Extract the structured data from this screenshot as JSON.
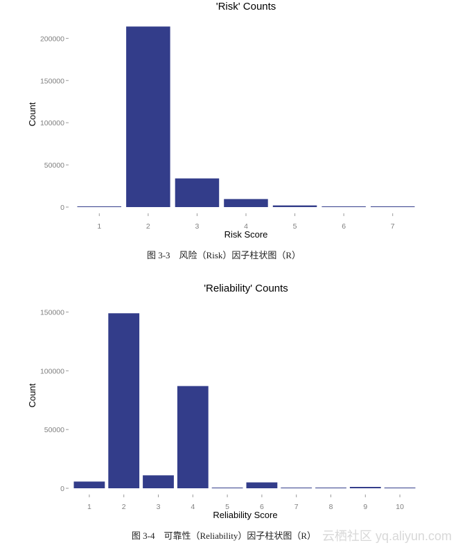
{
  "chart_data": [
    {
      "type": "bar",
      "title": "'Risk' Counts",
      "xlabel": "Risk Score",
      "ylabel": "Count",
      "categories": [
        "1",
        "2",
        "3",
        "4",
        "5",
        "6",
        "7"
      ],
      "values": [
        400,
        214000,
        34000,
        9500,
        2000,
        400,
        300
      ],
      "ylim": [
        0,
        220000
      ],
      "yticks": [
        "0",
        "50000",
        "100000",
        "150000",
        "200000"
      ],
      "ytick_values": [
        0,
        50000,
        100000,
        150000,
        200000
      ],
      "bar_color": "#333d8a",
      "grid": false,
      "caption": "图 3-3　风险（Risk）因子柱状图（R）"
    },
    {
      "type": "bar",
      "title": "'Reliability' Counts",
      "xlabel": "Reliability Score",
      "ylabel": "Count",
      "categories": [
        "1",
        "2",
        "3",
        "4",
        "5",
        "6",
        "7",
        "8",
        "9",
        "10"
      ],
      "values": [
        5700,
        149000,
        11000,
        87000,
        200,
        5000,
        500,
        300,
        1200,
        400
      ],
      "ylim": [
        0,
        158000
      ],
      "yticks": [
        "0",
        "50000",
        "100000",
        "150000"
      ],
      "ytick_values": [
        0,
        50000,
        100000,
        150000
      ],
      "bar_color": "#333d8a",
      "grid": false,
      "caption": "图 3-4　可靠性（Reliability）因子柱状图（R）"
    }
  ],
  "watermark": "云栖社区 yq.aliyun.com"
}
